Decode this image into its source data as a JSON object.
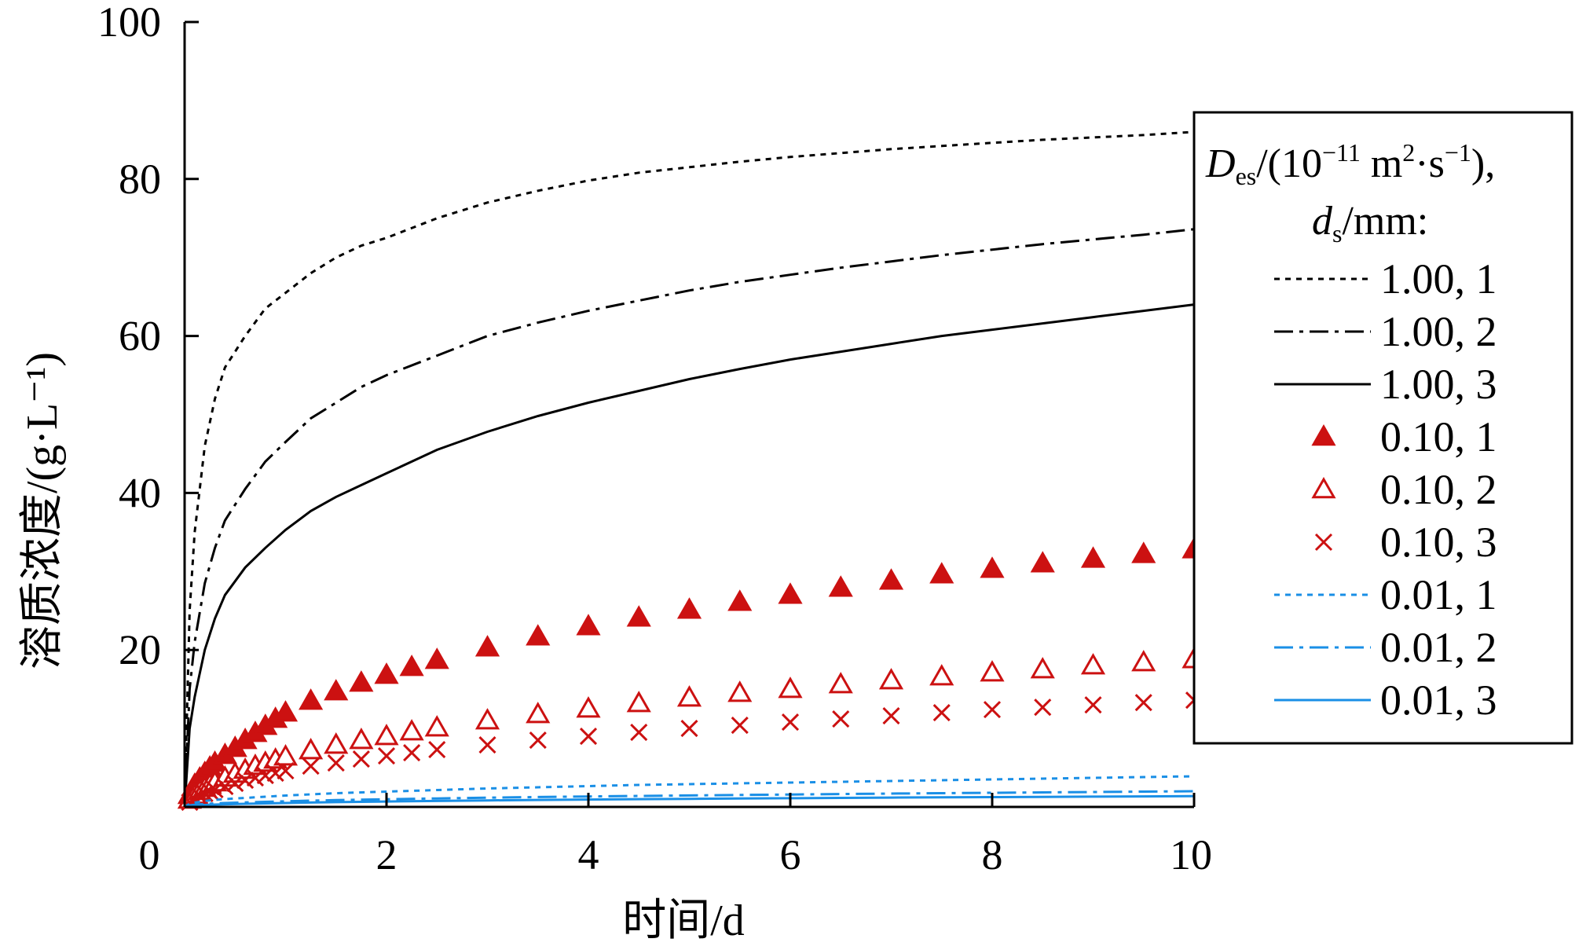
{
  "chart_data": {
    "type": "line",
    "xlabel": "时间/d",
    "ylabel": "溶质浓度/(g·L⁻¹)",
    "xlim": [
      0,
      10
    ],
    "ylim": [
      0,
      100
    ],
    "xticks": [
      "0",
      "2",
      "4",
      "6",
      "8",
      "10"
    ],
    "yticks": [
      "20",
      "40",
      "60",
      "80",
      "100"
    ],
    "grid": false,
    "legend": {
      "placement": "right",
      "title_line1": {
        "main": "D",
        "sub": "es",
        "text1": "/(10",
        "sup1": "−11",
        "text2": " m",
        "sup2": "2",
        "text3": "·s",
        "sup3": "−1",
        "text4": "),"
      },
      "title_line2": {
        "main": "d",
        "sub": "s",
        "text": "/mm:"
      }
    },
    "colors": {
      "black": "#000000",
      "red": "#cc1111",
      "blue": "#1a8fe6"
    },
    "x": [
      0,
      0.05,
      0.1,
      0.2,
      0.3,
      0.4,
      0.6,
      0.8,
      1.0,
      1.25,
      1.5,
      1.75,
      2.0,
      2.5,
      3.0,
      3.5,
      4.0,
      4.5,
      5.0,
      5.5,
      6.0,
      6.5,
      7.0,
      7.5,
      8.0,
      8.5,
      9.0,
      9.5,
      10.0
    ],
    "series": [
      {
        "name": "1.00, 1",
        "label": "1.00, 1",
        "color": "#000000",
        "style": "dotted",
        "values": [
          0,
          25,
          35,
          46,
          52,
          56,
          60,
          63.5,
          65.5,
          68,
          70,
          71.5,
          72.5,
          75,
          77,
          78.5,
          79.8,
          80.8,
          81.5,
          82.2,
          82.8,
          83.3,
          83.8,
          84.2,
          84.6,
          85,
          85.3,
          85.6,
          86
        ]
      },
      {
        "name": "1.00, 2",
        "label": "1.00, 2",
        "color": "#000000",
        "style": "dashdot",
        "values": [
          0,
          15,
          21,
          28.5,
          33,
          36.5,
          40.5,
          44,
          46.5,
          49.5,
          51.5,
          53.5,
          55,
          57.5,
          60,
          61.7,
          63.2,
          64.5,
          65.8,
          66.9,
          67.8,
          68.7,
          69.5,
          70.3,
          71,
          71.7,
          72.3,
          72.9,
          73.6
        ]
      },
      {
        "name": "1.00, 3",
        "label": "1.00, 3",
        "color": "#000000",
        "style": "solid",
        "values": [
          0,
          10,
          14,
          20,
          24,
          27,
          30.5,
          33,
          35.3,
          37.7,
          39.5,
          41,
          42.5,
          45.5,
          47.8,
          49.8,
          51.5,
          53,
          54.5,
          55.8,
          57,
          58,
          59,
          60,
          60.8,
          61.6,
          62.4,
          63.2,
          64
        ]
      },
      {
        "name": "0.10, 1",
        "label": "0.10, 1",
        "color": "#cc1111",
        "marker": "triangle-filled",
        "x": [
          0.05,
          0.1,
          0.15,
          0.2,
          0.25,
          0.3,
          0.4,
          0.5,
          0.6,
          0.7,
          0.8,
          0.9,
          1.0,
          1.25,
          1.5,
          1.75,
          2.0,
          2.25,
          2.5,
          3.0,
          3.5,
          4.0,
          4.5,
          5.0,
          5.5,
          6.0,
          6.5,
          7.0,
          7.5,
          8.0,
          8.5,
          9.0,
          9.5,
          10.0
        ],
        "values": [
          1.5,
          2.8,
          3.6,
          4.3,
          5,
          5.6,
          6.6,
          7.5,
          8.5,
          9.4,
          10.3,
          11.2,
          12,
          13.5,
          14.7,
          15.8,
          16.8,
          17.8,
          18.7,
          20.3,
          21.7,
          23,
          24.1,
          25.1,
          26.1,
          27,
          27.9,
          28.8,
          29.6,
          30.3,
          31,
          31.6,
          32.2,
          32.8
        ]
      },
      {
        "name": "0.10, 2",
        "label": "0.10, 2",
        "color": "#cc1111",
        "marker": "triangle-open",
        "x": [
          0.05,
          0.1,
          0.15,
          0.2,
          0.25,
          0.3,
          0.4,
          0.5,
          0.6,
          0.7,
          0.8,
          0.9,
          1.0,
          1.25,
          1.5,
          1.75,
          2.0,
          2.25,
          2.5,
          3.0,
          3.5,
          4.0,
          4.5,
          5.0,
          5.5,
          6.0,
          6.5,
          7.0,
          7.5,
          8.0,
          8.5,
          9.0,
          9.5,
          10.0
        ],
        "values": [
          0.9,
          1.5,
          2,
          2.4,
          2.8,
          3.1,
          3.7,
          4.2,
          4.7,
          5.2,
          5.6,
          6,
          6.4,
          7.2,
          7.9,
          8.5,
          9,
          9.6,
          10.1,
          11,
          11.8,
          12.5,
          13.2,
          13.9,
          14.5,
          15,
          15.6,
          16.1,
          16.6,
          17.1,
          17.5,
          18,
          18.4,
          18.8
        ]
      },
      {
        "name": "0.10, 3",
        "label": "0.10, 3",
        "color": "#cc1111",
        "marker": "cross",
        "x": [
          0.05,
          0.1,
          0.15,
          0.2,
          0.25,
          0.3,
          0.4,
          0.5,
          0.6,
          0.7,
          0.8,
          0.9,
          1.0,
          1.25,
          1.5,
          1.75,
          2.0,
          2.25,
          2.5,
          3.0,
          3.5,
          4.0,
          4.5,
          5.0,
          5.5,
          6.0,
          6.5,
          7.0,
          7.5,
          8.0,
          8.5,
          9.0,
          9.5,
          10.0
        ],
        "values": [
          0.6,
          1,
          1.4,
          1.7,
          2,
          2.2,
          2.6,
          3,
          3.4,
          3.7,
          4,
          4.3,
          4.6,
          5.2,
          5.6,
          6.1,
          6.5,
          6.9,
          7.3,
          7.9,
          8.5,
          9,
          9.5,
          10,
          10.4,
          10.8,
          11.2,
          11.6,
          12,
          12.4,
          12.7,
          13,
          13.3,
          13.6
        ]
      },
      {
        "name": "0.01, 1",
        "label": "0.01, 1",
        "color": "#1a8fe6",
        "style": "dotted",
        "values": [
          0,
          0.4,
          0.55,
          0.75,
          0.9,
          1,
          1.15,
          1.3,
          1.45,
          1.6,
          1.75,
          1.85,
          1.95,
          2.15,
          2.35,
          2.5,
          2.65,
          2.8,
          2.9,
          3.0,
          3.1,
          3.2,
          3.3,
          3.4,
          3.5,
          3.6,
          3.7,
          3.8,
          3.9
        ]
      },
      {
        "name": "0.01, 2",
        "label": "0.01, 2",
        "color": "#1a8fe6",
        "style": "dashdot",
        "values": [
          0,
          0.2,
          0.28,
          0.38,
          0.45,
          0.5,
          0.58,
          0.65,
          0.72,
          0.8,
          0.87,
          0.93,
          0.98,
          1.08,
          1.18,
          1.26,
          1.33,
          1.4,
          1.46,
          1.52,
          1.58,
          1.64,
          1.7,
          1.75,
          1.8,
          1.85,
          1.9,
          1.95,
          2.0
        ]
      },
      {
        "name": "0.01, 3",
        "label": "0.01, 3",
        "color": "#1a8fe6",
        "style": "solid",
        "values": [
          0,
          0.13,
          0.18,
          0.25,
          0.3,
          0.34,
          0.4,
          0.45,
          0.5,
          0.56,
          0.61,
          0.65,
          0.69,
          0.76,
          0.83,
          0.89,
          0.94,
          0.99,
          1.03,
          1.07,
          1.11,
          1.15,
          1.19,
          1.22,
          1.25,
          1.28,
          1.31,
          1.34,
          1.37
        ]
      }
    ]
  }
}
